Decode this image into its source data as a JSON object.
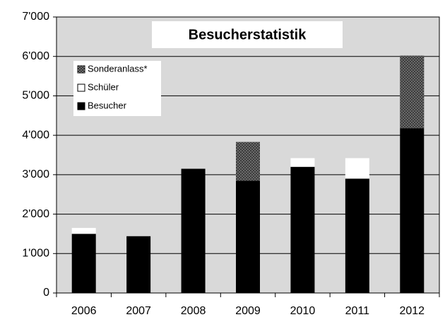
{
  "chart_data": {
    "type": "stacked_bar",
    "title": "Besucherstatistik",
    "categories": [
      "2006",
      "2007",
      "2008",
      "2009",
      "2010",
      "2011",
      "2012"
    ],
    "series": [
      {
        "name": "Besucher",
        "color": "#000000",
        "values": [
          1500,
          1440,
          3150,
          2850,
          3200,
          2900,
          4180
        ]
      },
      {
        "name": "Schüler",
        "color": "#ffffff",
        "values": [
          150,
          0,
          0,
          0,
          220,
          520,
          0
        ]
      },
      {
        "name": "Sonderanlass*",
        "color": "#3c3c3c",
        "values": [
          0,
          0,
          0,
          980,
          0,
          0,
          1840
        ]
      }
    ],
    "ylim": [
      0,
      7000
    ],
    "yticks": [
      0,
      {
        "value": 1000,
        "label": "1'000"
      },
      {
        "value": 2000,
        "label": "2'000"
      },
      {
        "value": 3000,
        "label": "3'000"
      },
      {
        "value": 4000,
        "label": "4'000"
      },
      {
        "value": 5000,
        "label": "5'000"
      },
      {
        "value": 6000,
        "label": "6'000"
      },
      {
        "value": 7000,
        "label": "7'000"
      }
    ],
    "grid": true
  }
}
